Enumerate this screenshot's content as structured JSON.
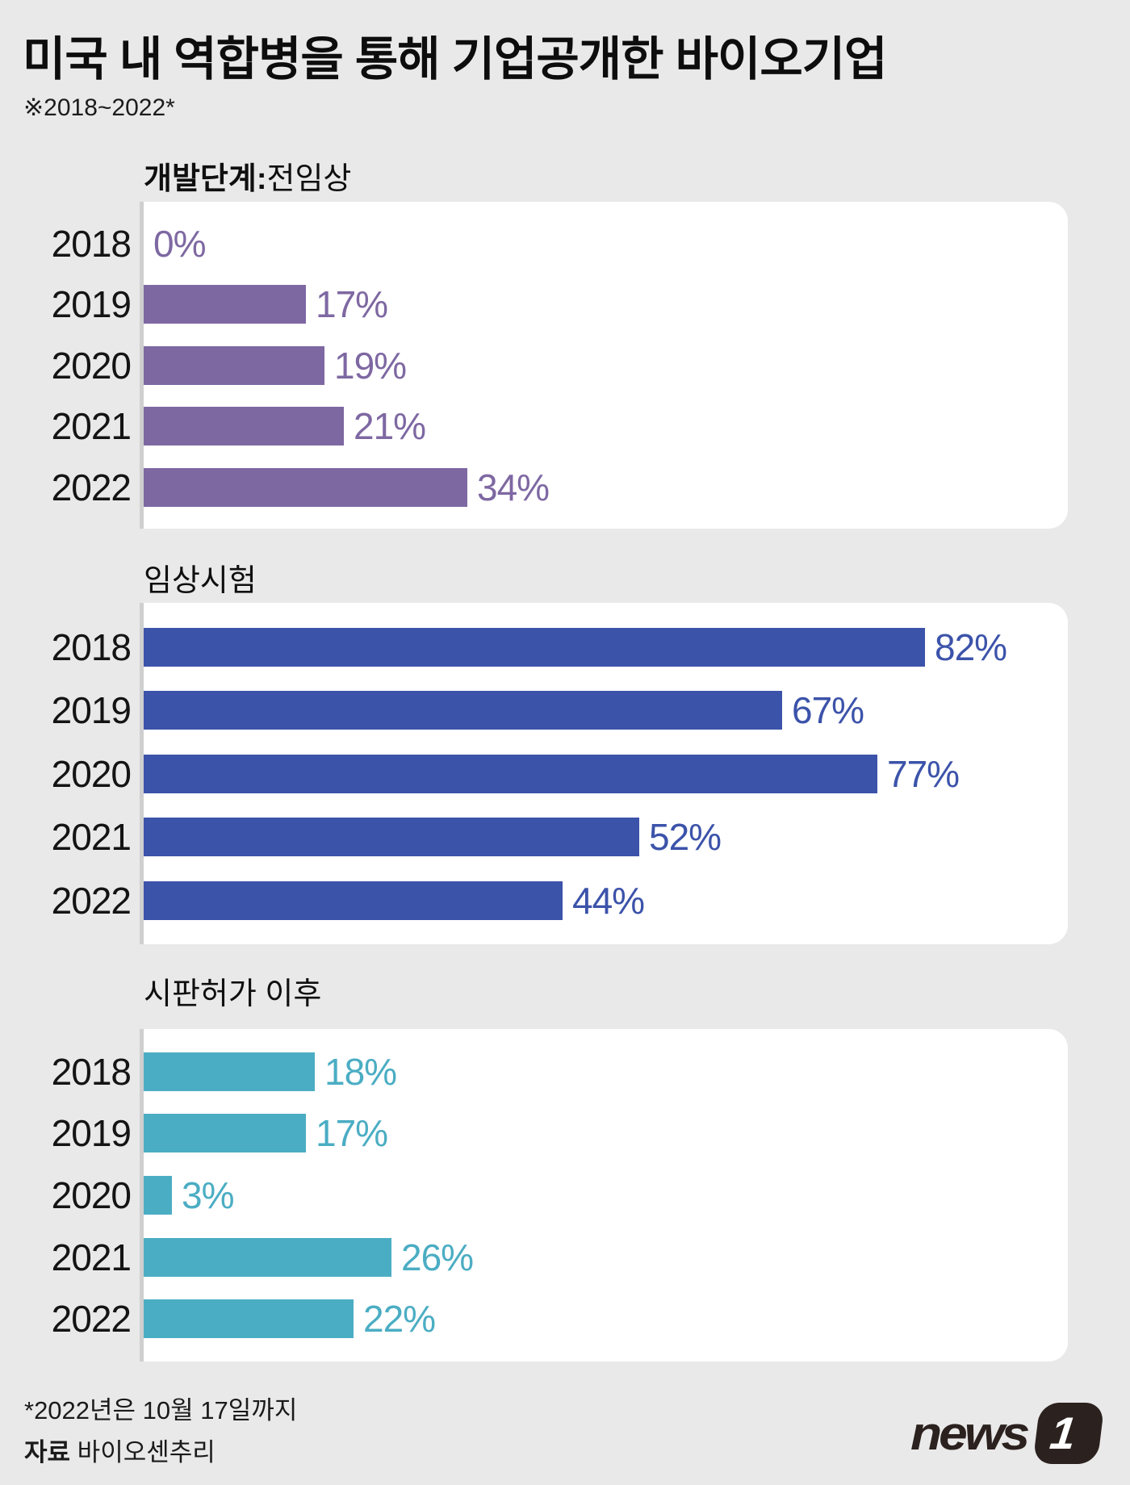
{
  "header": {
    "title": "미국 내 역합병을 통해 기업공개한 바이오기업",
    "subtitle": "※2018~2022*"
  },
  "chart_data": [
    {
      "type": "bar",
      "title_bold": "개발단계:",
      "title": "전임상",
      "categories": [
        "2018",
        "2019",
        "2020",
        "2021",
        "2022"
      ],
      "values": [
        0,
        17,
        19,
        21,
        34
      ],
      "unit": "%",
      "color": "#7e68a2",
      "xlim": [
        0,
        97
      ],
      "orientation": "horizontal",
      "grid": false,
      "value_labels": "outside-end"
    },
    {
      "type": "bar",
      "title_bold": "",
      "title": "임상시험",
      "categories": [
        "2018",
        "2019",
        "2020",
        "2021",
        "2022"
      ],
      "values": [
        82,
        67,
        77,
        52,
        44
      ],
      "unit": "%",
      "color": "#3c53aa",
      "xlim": [
        0,
        97
      ],
      "orientation": "horizontal",
      "grid": false,
      "value_labels": "outside-end"
    },
    {
      "type": "bar",
      "title_bold": "",
      "title": "시판허가 이후",
      "categories": [
        "2018",
        "2019",
        "2020",
        "2021",
        "2022"
      ],
      "values": [
        18,
        17,
        3,
        26,
        22
      ],
      "unit": "%",
      "color": "#4badc3",
      "xlim": [
        0,
        97
      ],
      "orientation": "horizontal",
      "grid": false,
      "value_labels": "outside-end"
    }
  ],
  "footer": {
    "note": "*2022년은 10월 17일까지",
    "source_label": "자료",
    "source": "바이오센추리",
    "logo_text": "news",
    "logo_badge": "1"
  },
  "colors": {
    "background": "#e9e9e9",
    "panel": "#ffffff",
    "axis": "#cfcfcf",
    "preclinical": "#7e68a2",
    "clinical": "#3c53aa",
    "post_approval": "#4badc3",
    "logo": "#2b211e"
  }
}
